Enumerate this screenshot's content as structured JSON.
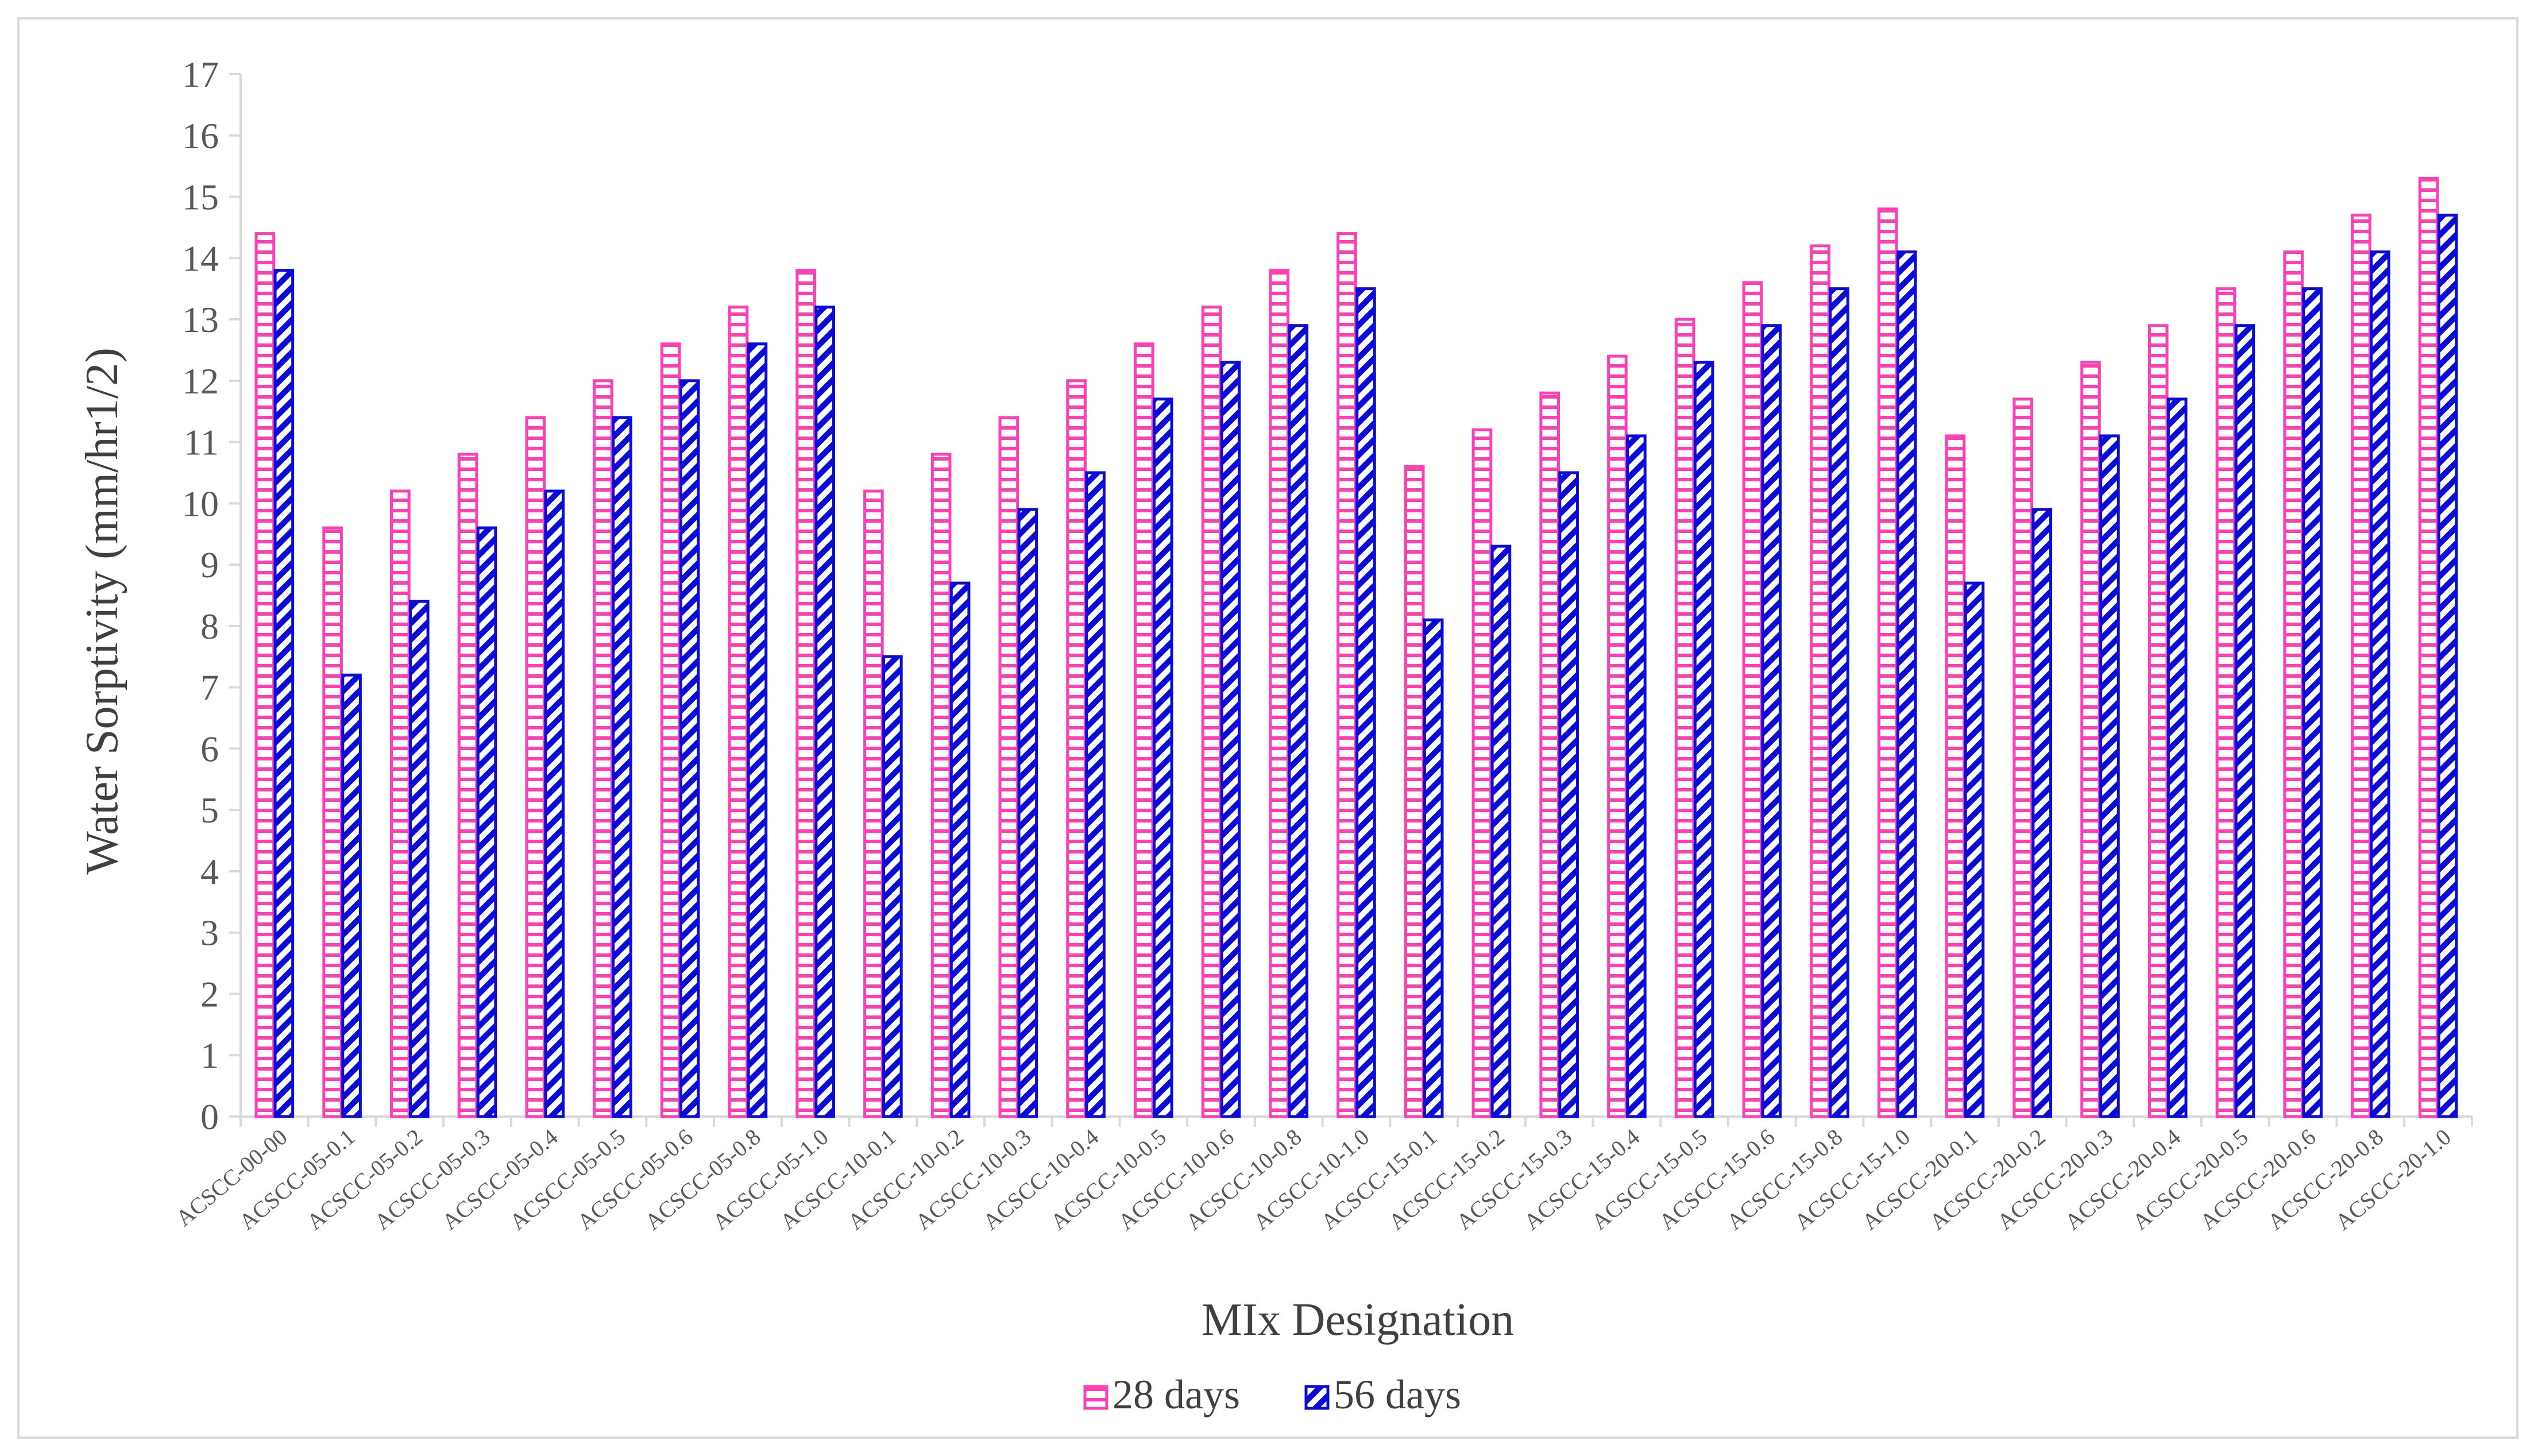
{
  "chart_data": {
    "type": "bar",
    "title": "",
    "xlabel": "MIx Designation",
    "ylabel": "Water Sorptivity (mm/hr1/2)",
    "ylim": [
      0,
      17
    ],
    "yticks": [
      "0",
      "1",
      "2",
      "3",
      "4",
      "5",
      "6",
      "7",
      "8",
      "9",
      "10",
      "11",
      "12",
      "13",
      "14",
      "15",
      "16",
      "17"
    ],
    "grid": false,
    "legend_position": "bottom-center",
    "categories": [
      "ACSCC-00-00",
      "ACSCC-05-0.1",
      "ACSCC-05-0.2",
      "ACSCC-05-0.3",
      "ACSCC-05-0.4",
      "ACSCC-05-0.5",
      "ACSCC-05-0.6",
      "ACSCC-05-0.8",
      "ACSCC-05-1.0",
      "ACSCC-10-0.1",
      "ACSCC-10-0.2",
      "ACSCC-10-0.3",
      "ACSCC-10-0.4",
      "ACSCC-10-0.5",
      "ACSCC-10-0.6",
      "ACSCC-10-0.8",
      "ACSCC-10-1.0",
      "ACSCC-15-0.1",
      "ACSCC-15-0.2",
      "ACSCC-15-0.3",
      "ACSCC-15-0.4",
      "ACSCC-15-0.5",
      "ACSCC-15-0.6",
      "ACSCC-15-0.8",
      "ACSCC-15-1.0",
      "ACSCC-20-0.1",
      "ACSCC-20-0.2",
      "ACSCC-20-0.3",
      "ACSCC-20-0.4",
      "ACSCC-20-0.5",
      "ACSCC-20-0.6",
      "ACSCC-20-0.8",
      "ACSCC-20-1.0"
    ],
    "series": [
      {
        "name": "28 days",
        "color": "#ff3fb4",
        "pattern": "horizontal-stripes",
        "values": [
          14.4,
          9.6,
          10.2,
          10.8,
          11.4,
          12.0,
          12.6,
          13.2,
          13.8,
          10.2,
          10.8,
          11.4,
          12.0,
          12.6,
          13.2,
          13.8,
          14.4,
          10.6,
          11.2,
          11.8,
          12.4,
          13.0,
          13.6,
          14.2,
          14.8,
          11.1,
          11.7,
          12.3,
          12.9,
          13.5,
          14.1,
          14.7,
          15.3
        ]
      },
      {
        "name": "56 days",
        "color": "#0b0bd9",
        "pattern": "diagonal-stripes",
        "values": [
          13.8,
          7.2,
          8.4,
          9.6,
          10.2,
          11.4,
          12.0,
          12.6,
          13.2,
          7.5,
          8.7,
          9.9,
          10.5,
          11.7,
          12.3,
          12.9,
          13.5,
          8.1,
          9.3,
          10.5,
          11.1,
          12.3,
          12.9,
          13.5,
          14.1,
          8.7,
          9.9,
          11.1,
          11.7,
          12.9,
          13.5,
          14.1,
          14.7
        ]
      }
    ]
  }
}
